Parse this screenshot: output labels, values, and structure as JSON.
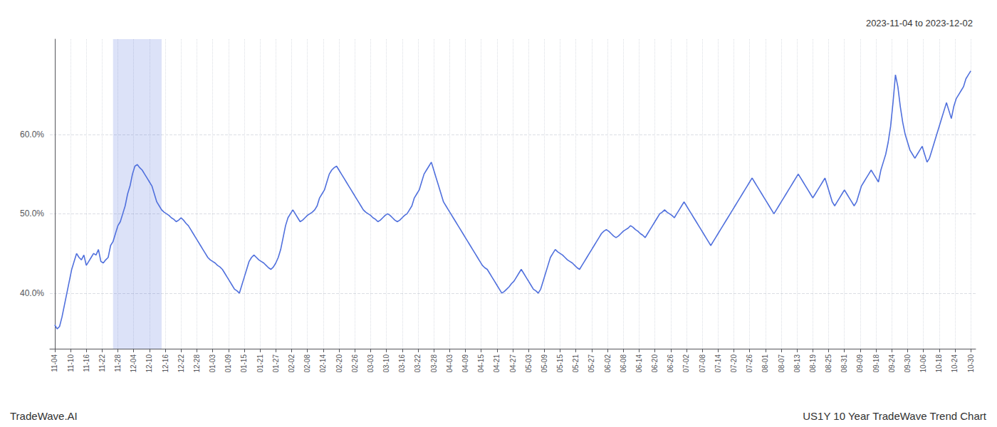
{
  "chart_data": {
    "type": "line",
    "annotations": [
      "2023-11-04 to 2023-12-02",
      "TradeWave.AI",
      "US1Y 10 Year TradeWave Trend Chart"
    ],
    "x": [
      0,
      1,
      2,
      3,
      4,
      5,
      6,
      7,
      8,
      9,
      10,
      11,
      12,
      13,
      14,
      15,
      16,
      17,
      18,
      19,
      20,
      21,
      22,
      23,
      24,
      25,
      26,
      27,
      28,
      29,
      30,
      31,
      32,
      33,
      34,
      35,
      36,
      37,
      38,
      39,
      40,
      41,
      42,
      43,
      44,
      45,
      46,
      47,
      48,
      49,
      50,
      51,
      52,
      53,
      54,
      55,
      56,
      57,
      58,
      59,
      60,
      61,
      62,
      63,
      64,
      65,
      66,
      67,
      68,
      69,
      70,
      71,
      72,
      73,
      74,
      75,
      76,
      77,
      78,
      79,
      80,
      81,
      82,
      83,
      84,
      85,
      86,
      87,
      88,
      89,
      90,
      91,
      92,
      93,
      94,
      95,
      96,
      97,
      98,
      99,
      100,
      101,
      102,
      103,
      104,
      105,
      106,
      107,
      108,
      109,
      110,
      111,
      112,
      113,
      114,
      115,
      116,
      117,
      118,
      119,
      120,
      121,
      122,
      123,
      124,
      125,
      126,
      127,
      128,
      129,
      130,
      131,
      132,
      133,
      134,
      135,
      136,
      137,
      138,
      139,
      140,
      141,
      142,
      143,
      144,
      145,
      146,
      147,
      148,
      149,
      150,
      151,
      152,
      153,
      154,
      155,
      156,
      157,
      158,
      159,
      160,
      161,
      162,
      163,
      164,
      165,
      166,
      167,
      168,
      169,
      170,
      171,
      172,
      173,
      174,
      175,
      176,
      177,
      178,
      179,
      180,
      181,
      182,
      183,
      184,
      185,
      186,
      187,
      188,
      189,
      190,
      191,
      192,
      193,
      194,
      195,
      196,
      197,
      198,
      199,
      200,
      201,
      202,
      203,
      204,
      205,
      206,
      207,
      208,
      209,
      210,
      211,
      212,
      213,
      214,
      215,
      216,
      217,
      218,
      219,
      220,
      221,
      222,
      223,
      224,
      225,
      226,
      227,
      228,
      229,
      230,
      231,
      232,
      233,
      234,
      235,
      236,
      237,
      238,
      239,
      240,
      241,
      242,
      243,
      244,
      245,
      246,
      247,
      248,
      249,
      250,
      251,
      252,
      253,
      254,
      255,
      256,
      257,
      258,
      259,
      260,
      261,
      262,
      263,
      264,
      265,
      266,
      267,
      268,
      269,
      270,
      271,
      272,
      273,
      274,
      275,
      276,
      277,
      278,
      279,
      280,
      281,
      282,
      283,
      284,
      285,
      286,
      287,
      288,
      289,
      290,
      291,
      292,
      293,
      294,
      295,
      296,
      297,
      298,
      299,
      300,
      301,
      302,
      303,
      304,
      305,
      306,
      307,
      308,
      309,
      310,
      311,
      312,
      313,
      314,
      315,
      316,
      317,
      318,
      319,
      320,
      321,
      322,
      323,
      324,
      325,
      326,
      327,
      328,
      329,
      330,
      331,
      332,
      333,
      334,
      335,
      336,
      337,
      338,
      339,
      340,
      341,
      342,
      343,
      344,
      345,
      346,
      347,
      348,
      349,
      350,
      351,
      352,
      353,
      354,
      355,
      356,
      357,
      358,
      359,
      360,
      361,
      362,
      363,
      364,
      365,
      366,
      367,
      368,
      369,
      370,
      371,
      372,
      373,
      374,
      375,
      376,
      377
    ],
    "values": [
      36.0,
      35.5,
      35.8,
      37.0,
      38.5,
      40.0,
      41.5,
      43.0,
      44.0,
      45.0,
      44.5,
      44.2,
      44.8,
      43.5,
      44.0,
      44.5,
      45.0,
      44.8,
      45.5,
      44.0,
      43.8,
      44.2,
      44.5,
      46.0,
      46.5,
      47.5,
      48.5,
      49.0,
      50.0,
      51.0,
      52.5,
      53.5,
      55.0,
      56.0,
      56.2,
      55.8,
      55.5,
      55.0,
      54.5,
      54.0,
      53.5,
      52.5,
      51.5,
      51.0,
      50.5,
      50.2,
      50.0,
      49.8,
      49.5,
      49.3,
      49.0,
      49.2,
      49.5,
      49.2,
      48.8,
      48.5,
      48.0,
      47.5,
      47.0,
      46.5,
      46.0,
      45.5,
      45.0,
      44.5,
      44.2,
      44.0,
      43.8,
      43.5,
      43.3,
      43.0,
      42.5,
      42.0,
      41.5,
      41.0,
      40.5,
      40.3,
      40.0,
      41.0,
      42.0,
      43.0,
      44.0,
      44.5,
      44.8,
      44.5,
      44.2,
      44.0,
      43.8,
      43.5,
      43.2,
      43.0,
      43.3,
      43.8,
      44.5,
      45.5,
      47.0,
      48.5,
      49.5,
      50.0,
      50.5,
      50.0,
      49.5,
      49.0,
      49.2,
      49.5,
      49.8,
      50.0,
      50.2,
      50.5,
      51.0,
      52.0,
      52.5,
      53.0,
      54.0,
      55.0,
      55.5,
      55.8,
      56.0,
      55.5,
      55.0,
      54.5,
      54.0,
      53.5,
      53.0,
      52.5,
      52.0,
      51.5,
      51.0,
      50.5,
      50.2,
      50.0,
      49.8,
      49.5,
      49.3,
      49.0,
      49.2,
      49.5,
      49.8,
      50.0,
      49.8,
      49.5,
      49.2,
      49.0,
      49.2,
      49.5,
      49.8,
      50.0,
      50.5,
      51.0,
      52.0,
      52.5,
      53.0,
      54.0,
      55.0,
      55.5,
      56.0,
      56.5,
      55.5,
      54.5,
      53.5,
      52.5,
      51.5,
      51.0,
      50.5,
      50.0,
      49.5,
      49.0,
      48.5,
      48.0,
      47.5,
      47.0,
      46.5,
      46.0,
      45.5,
      45.0,
      44.5,
      44.0,
      43.5,
      43.2,
      43.0,
      42.5,
      42.0,
      41.5,
      41.0,
      40.5,
      40.0,
      40.2,
      40.5,
      40.8,
      41.2,
      41.5,
      42.0,
      42.5,
      43.0,
      42.5,
      42.0,
      41.5,
      41.0,
      40.5,
      40.3,
      40.0,
      40.5,
      41.5,
      42.5,
      43.5,
      44.5,
      45.0,
      45.5,
      45.2,
      45.0,
      44.8,
      44.5,
      44.2,
      44.0,
      43.8,
      43.5,
      43.2,
      43.0,
      43.5,
      44.0,
      44.5,
      45.0,
      45.5,
      46.0,
      46.5,
      47.0,
      47.5,
      47.8,
      48.0,
      47.8,
      47.5,
      47.2,
      47.0,
      47.2,
      47.5,
      47.8,
      48.0,
      48.2,
      48.5,
      48.3,
      48.0,
      47.8,
      47.5,
      47.3,
      47.0,
      47.5,
      48.0,
      48.5,
      49.0,
      49.5,
      50.0,
      50.2,
      50.5,
      50.2,
      50.0,
      49.8,
      49.5,
      50.0,
      50.5,
      51.0,
      51.5,
      51.0,
      50.5,
      50.0,
      49.5,
      49.0,
      48.5,
      48.0,
      47.5,
      47.0,
      46.5,
      46.0,
      46.5,
      47.0,
      47.5,
      48.0,
      48.5,
      49.0,
      49.5,
      50.0,
      50.5,
      51.0,
      51.5,
      52.0,
      52.5,
      53.0,
      53.5,
      54.0,
      54.5,
      54.0,
      53.5,
      53.0,
      52.5,
      52.0,
      51.5,
      51.0,
      50.5,
      50.0,
      50.5,
      51.0,
      51.5,
      52.0,
      52.5,
      53.0,
      53.5,
      54.0,
      54.5,
      55.0,
      54.5,
      54.0,
      53.5,
      53.0,
      52.5,
      52.0,
      52.5,
      53.0,
      53.5,
      54.0,
      54.5,
      53.5,
      52.5,
      51.5,
      51.0,
      51.5,
      52.0,
      52.5,
      53.0,
      52.5,
      52.0,
      51.5,
      51.0,
      51.5,
      52.5,
      53.5,
      54.0,
      54.5,
      55.0,
      55.5,
      55.0,
      54.5,
      54.0,
      55.5,
      56.5,
      57.5,
      59.0,
      61.0,
      64.0,
      67.5,
      66.0,
      63.5,
      61.5,
      60.0,
      59.0,
      58.0,
      57.5,
      57.0,
      57.5,
      58.0,
      58.5,
      57.5,
      56.5,
      57.0,
      58.0,
      59.0,
      60.0,
      61.0,
      62.0,
      63.0,
      64.0,
      63.0,
      62.0,
      63.5,
      64.5,
      65.0,
      65.5,
      66.0,
      67.0,
      67.5,
      68.0
    ],
    "shade_range": [
      24,
      44
    ],
    "xlim": [
      -2,
      379
    ],
    "xticks": [
      {
        "value": 0,
        "label": "11-04"
      },
      {
        "value": 6.5,
        "label": "11-10"
      },
      {
        "value": 13,
        "label": "11-16"
      },
      {
        "value": 19.5,
        "label": "11-22"
      },
      {
        "value": 26,
        "label": "11-28"
      },
      {
        "value": 32.5,
        "label": "12-04"
      },
      {
        "value": 39,
        "label": "12-10"
      },
      {
        "value": 45.5,
        "label": "12-16"
      },
      {
        "value": 52,
        "label": "12-22"
      },
      {
        "value": 58.5,
        "label": "12-28"
      },
      {
        "value": 65,
        "label": "01-03"
      },
      {
        "value": 71.5,
        "label": "01-09"
      },
      {
        "value": 78,
        "label": "01-15"
      },
      {
        "value": 84.5,
        "label": "01-21"
      },
      {
        "value": 91,
        "label": "01-27"
      },
      {
        "value": 97.5,
        "label": "02-02"
      },
      {
        "value": 104,
        "label": "02-08"
      },
      {
        "value": 110.5,
        "label": "02-14"
      },
      {
        "value": 117,
        "label": "02-20"
      },
      {
        "value": 123.5,
        "label": "02-26"
      },
      {
        "value": 130,
        "label": "03-03"
      },
      {
        "value": 136.5,
        "label": "03-10"
      },
      {
        "value": 143,
        "label": "03-16"
      },
      {
        "value": 149.5,
        "label": "03-22"
      },
      {
        "value": 156,
        "label": "03-28"
      },
      {
        "value": 162.5,
        "label": "04-03"
      },
      {
        "value": 169,
        "label": "04-09"
      },
      {
        "value": 175.5,
        "label": "04-15"
      },
      {
        "value": 182,
        "label": "04-21"
      },
      {
        "value": 188.5,
        "label": "04-27"
      },
      {
        "value": 195,
        "label": "05-03"
      },
      {
        "value": 201.5,
        "label": "05-09"
      },
      {
        "value": 208,
        "label": "05-15"
      },
      {
        "value": 214.5,
        "label": "05-21"
      },
      {
        "value": 221,
        "label": "05-27"
      },
      {
        "value": 227.5,
        "label": "06-02"
      },
      {
        "value": 234,
        "label": "06-08"
      },
      {
        "value": 240.5,
        "label": "06-14"
      },
      {
        "value": 247,
        "label": "06-20"
      },
      {
        "value": 253.5,
        "label": "06-26"
      },
      {
        "value": 260,
        "label": "07-02"
      },
      {
        "value": 266.5,
        "label": "07-08"
      },
      {
        "value": 273,
        "label": "07-14"
      },
      {
        "value": 279.5,
        "label": "07-20"
      },
      {
        "value": 286,
        "label": "07-26"
      },
      {
        "value": 292.5,
        "label": "08-01"
      },
      {
        "value": 299,
        "label": "08-07"
      },
      {
        "value": 305.5,
        "label": "08-13"
      },
      {
        "value": 312,
        "label": "08-19"
      },
      {
        "value": 318.5,
        "label": "08-25"
      },
      {
        "value": 325,
        "label": "08-31"
      },
      {
        "value": 331.5,
        "label": "09-09"
      },
      {
        "value": 338,
        "label": "09-18"
      },
      {
        "value": 344.5,
        "label": "09-24"
      },
      {
        "value": 351,
        "label": "09-30"
      },
      {
        "value": 357.5,
        "label": "10-06"
      },
      {
        "value": 364,
        "label": "10-18"
      },
      {
        "value": 370.5,
        "label": "10-24"
      },
      {
        "value": 377,
        "label": "10-30"
      }
    ],
    "ylim": [
      33,
      72
    ],
    "yticks": [
      {
        "value": 40,
        "label": "40.0%"
      },
      {
        "value": 50,
        "label": "50.0%"
      },
      {
        "value": 60,
        "label": "60.0%"
      }
    ],
    "grid": true
  }
}
